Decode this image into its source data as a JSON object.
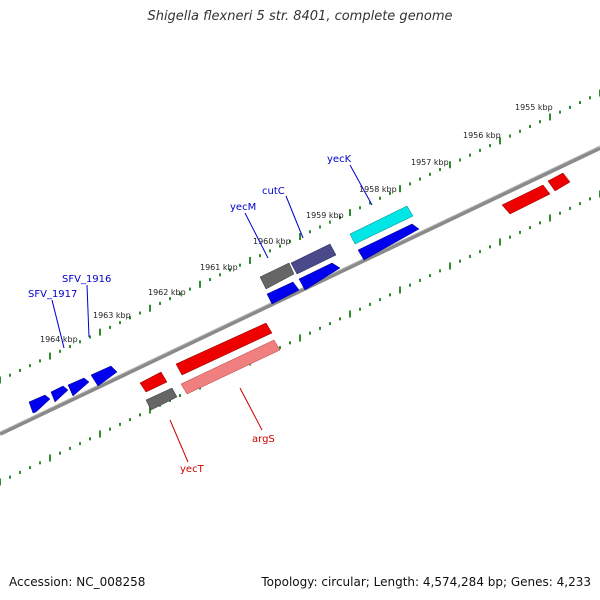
{
  "title": "Shigella flexneri 5 str. 8401, complete genome",
  "footer": {
    "accession": "Accession: NC_008258",
    "summary": "Topology: circular; Length: 4,574,284 bp; Genes: 4,233"
  },
  "colors": {
    "backbone": "#8a8a8a",
    "tick": "#2e8b2e",
    "forward_gene": "#0000ee",
    "reverse_gene": "#ee0000",
    "rna_gene": "#00e6e6",
    "pseudo_gene": "#666666",
    "purple_gene": "#4a4a8a",
    "pink_gene": "#f08080",
    "label_forward": "#0000cc",
    "label_reverse": "#cc0000"
  },
  "scale_labels": [
    "1955 kbp",
    "1956 kbp",
    "1957 kbp",
    "1958 kbp",
    "1959 kbp",
    "1960 kbp",
    "1961 kbp",
    "1962 kbp",
    "1963 kbp",
    "1964 kbp"
  ],
  "gene_labels": [
    {
      "name": "yecK",
      "strand": "forward"
    },
    {
      "name": "cutC",
      "strand": "forward"
    },
    {
      "name": "yecM",
      "strand": "forward"
    },
    {
      "name": "SFV_1916",
      "strand": "forward"
    },
    {
      "name": "SFV_1917",
      "strand": "forward"
    },
    {
      "name": "argS",
      "strand": "reverse"
    },
    {
      "name": "yecT",
      "strand": "reverse"
    }
  ]
}
